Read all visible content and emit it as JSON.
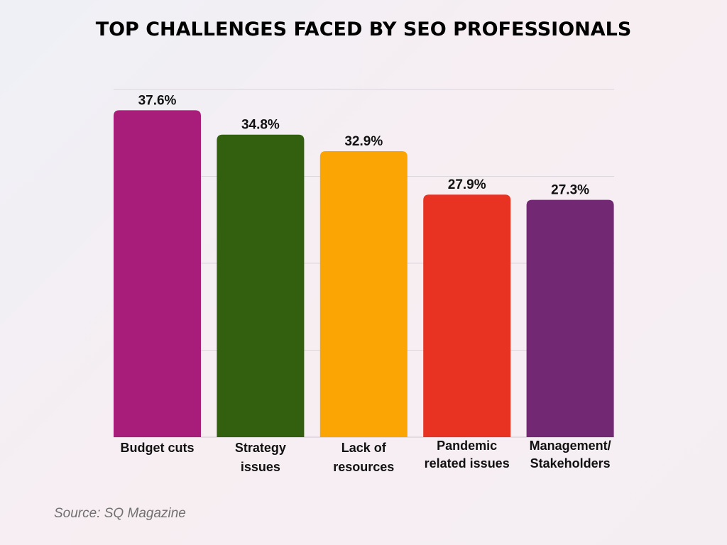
{
  "chart_data": {
    "type": "bar",
    "title": "TOP CHALLENGES FACED BY SEO PROFESSIONALS",
    "categories": [
      "Budget cuts",
      "Strategy issues",
      "Lack of resources",
      "Pandemic related issues",
      "Management/ Stakeholders"
    ],
    "category_lines": [
      [
        "Budget cuts"
      ],
      [
        "Strategy",
        "issues"
      ],
      [
        "Lack of",
        "resources"
      ],
      [
        "Pandemic",
        "related issues"
      ],
      [
        "Management/",
        "Stakeholders"
      ]
    ],
    "values": [
      37.6,
      34.8,
      32.9,
      27.9,
      27.3
    ],
    "data_labels": [
      "37.6%",
      "34.8%",
      "32.9%",
      "27.9%",
      "27.3%"
    ],
    "colors": [
      "#A91D7A",
      "#33600F",
      "#FBA504",
      "#E83322",
      "#722873"
    ],
    "ylim": [
      0,
      40
    ],
    "grid": true,
    "xlabel": "",
    "ylabel": ""
  },
  "source": "Source: SQ Magazine"
}
